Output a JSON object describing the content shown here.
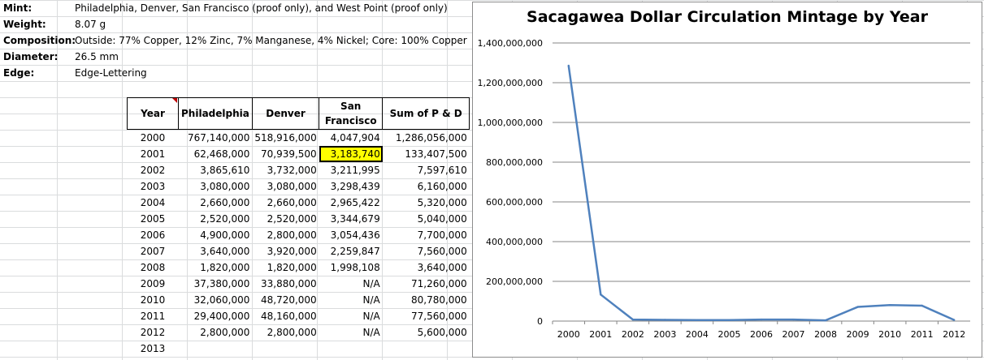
{
  "info": [
    {
      "label": "Mint:",
      "value": "Philadelphia, Denver, San Francisco (proof only), and West Point (proof only)"
    },
    {
      "label": "Weight:",
      "value": "8.07 g"
    },
    {
      "label": "Composition:",
      "value": "Outside: 77% Copper, 12% Zinc, 7% Manganese, 4% Nickel; Core: 100% Copper"
    },
    {
      "label": "Diameter:",
      "value": "26.5 mm"
    },
    {
      "label": "Edge:",
      "value": "Edge-Lettering"
    }
  ],
  "table": {
    "headers": [
      "Year",
      "Philadelphia",
      "Denver",
      "San Francisco",
      "Sum of P & D"
    ],
    "rows": [
      [
        "2000",
        "767,140,000",
        "518,916,000",
        "4,047,904",
        "1,286,056,000"
      ],
      [
        "2001",
        "62,468,000",
        "70,939,500",
        "3,183,740",
        "133,407,500"
      ],
      [
        "2002",
        "3,865,610",
        "3,732,000",
        "3,211,995",
        "7,597,610"
      ],
      [
        "2003",
        "3,080,000",
        "3,080,000",
        "3,298,439",
        "6,160,000"
      ],
      [
        "2004",
        "2,660,000",
        "2,660,000",
        "2,965,422",
        "5,320,000"
      ],
      [
        "2005",
        "2,520,000",
        "2,520,000",
        "3,344,679",
        "5,040,000"
      ],
      [
        "2006",
        "4,900,000",
        "2,800,000",
        "3,054,436",
        "7,700,000"
      ],
      [
        "2007",
        "3,640,000",
        "3,920,000",
        "2,259,847",
        "7,560,000"
      ],
      [
        "2008",
        "1,820,000",
        "1,820,000",
        "1,998,108",
        "3,640,000"
      ],
      [
        "2009",
        "37,380,000",
        "33,880,000",
        "N/A",
        "71,260,000"
      ],
      [
        "2010",
        "32,060,000",
        "48,720,000",
        "N/A",
        "80,780,000"
      ],
      [
        "2011",
        "29,400,000",
        "48,160,000",
        "N/A",
        "77,560,000"
      ],
      [
        "2012",
        "2,800,000",
        "2,800,000",
        "N/A",
        "5,600,000"
      ],
      [
        "2013",
        "",
        "",
        "",
        ""
      ]
    ]
  },
  "chart_data": {
    "type": "line",
    "title": "Sacagawea Dollar Circulation Mintage by Year",
    "categories": [
      "2000",
      "2001",
      "2002",
      "2003",
      "2004",
      "2005",
      "2006",
      "2007",
      "2008",
      "2009",
      "2010",
      "2011",
      "2012"
    ],
    "series": [
      {
        "values": [
          1286056000,
          133407500,
          7597610,
          6160000,
          5320000,
          5040000,
          7700000,
          7560000,
          3640000,
          71260000,
          80780000,
          77560000,
          5600000
        ],
        "color": "#4f81bd"
      }
    ],
    "ylim": [
      0,
      1400000000
    ],
    "yticks": [
      "0",
      "200,000,000",
      "400,000,000",
      "600,000,000",
      "800,000,000",
      "1,000,000,000",
      "1,200,000,000",
      "1,400,000,000"
    ],
    "ytick_values": [
      0,
      200000000,
      400000000,
      600000000,
      800000000,
      1000000000,
      1200000000,
      1400000000
    ],
    "grid": true,
    "legend": "none"
  }
}
